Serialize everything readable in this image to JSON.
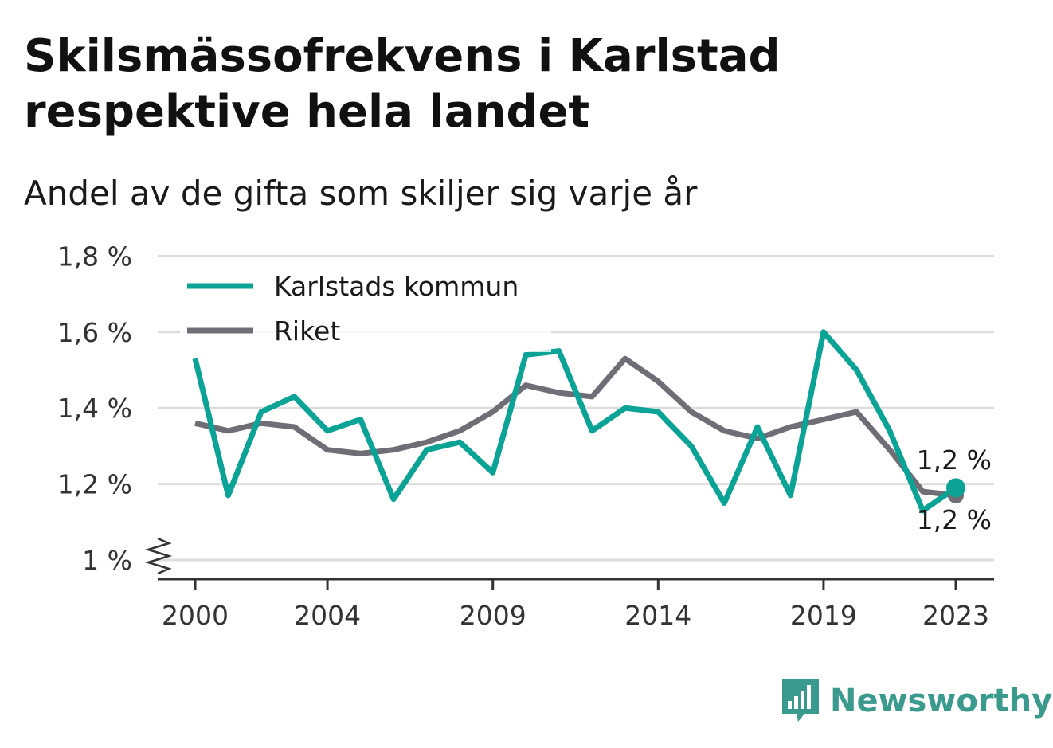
{
  "title": "Skilsmässofrekvens i Karlstad respektive hela landet",
  "subtitle": "Andel av de gifta som skiljer sig varje år",
  "brand": "Newsworthy",
  "colors": {
    "karlstad": "#0aa396",
    "riket": "#6f6e76",
    "grid": "#dddddd",
    "axis": "#333333"
  },
  "chart_data": {
    "type": "line",
    "x": [
      2000,
      2001,
      2002,
      2003,
      2004,
      2005,
      2006,
      2007,
      2008,
      2009,
      2010,
      2011,
      2012,
      2013,
      2014,
      2015,
      2016,
      2017,
      2018,
      2019,
      2020,
      2021,
      2022,
      2023
    ],
    "x_ticks": [
      2000,
      2004,
      2009,
      2014,
      2019,
      2023
    ],
    "y_ticks": [
      1.0,
      1.2,
      1.4,
      1.6,
      1.8
    ],
    "y_tick_labels": [
      "1 %",
      "1,2 %",
      "1,4 %",
      "1,6 %",
      "1,8 %"
    ],
    "ylim": [
      0.95,
      1.8
    ],
    "axis_break": true,
    "grid": true,
    "legend_position": "top-left",
    "series": [
      {
        "name": "Karlstads kommun",
        "values": [
          1.53,
          1.17,
          1.39,
          1.43,
          1.34,
          1.37,
          1.16,
          1.29,
          1.31,
          1.23,
          1.54,
          1.55,
          1.34,
          1.4,
          1.39,
          1.3,
          1.15,
          1.35,
          1.17,
          1.6,
          1.5,
          1.34,
          1.13,
          1.19
        ]
      },
      {
        "name": "Riket",
        "values": [
          1.36,
          1.34,
          1.36,
          1.35,
          1.29,
          1.28,
          1.29,
          1.31,
          1.34,
          1.39,
          1.46,
          1.44,
          1.43,
          1.53,
          1.47,
          1.39,
          1.34,
          1.32,
          1.35,
          1.37,
          1.39,
          1.29,
          1.18,
          1.17
        ]
      }
    ],
    "end_labels": [
      "1,2 %",
      "1,2 %"
    ]
  }
}
